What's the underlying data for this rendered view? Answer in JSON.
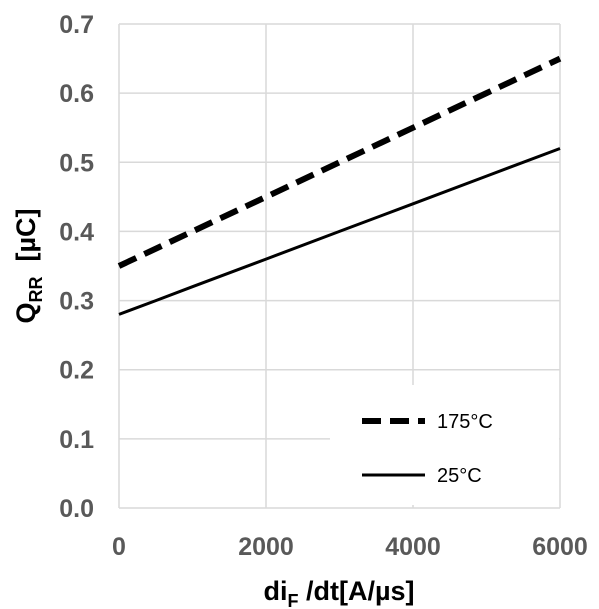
{
  "chart_data": {
    "type": "line",
    "x_axis": {
      "label_main": "di",
      "label_sub": "F",
      "label_rest": " /dt[A/µs]",
      "range": [
        0,
        6000
      ],
      "ticks": [
        0,
        2000,
        4000,
        6000
      ],
      "tick_labels": [
        "0",
        "2000",
        "4000",
        "6000"
      ]
    },
    "y_axis": {
      "label_main": "Q",
      "label_sub": "RR",
      "label_rest": "  [µC]",
      "range": [
        0.0,
        0.7
      ],
      "ticks": [
        0.0,
        0.1,
        0.2,
        0.3,
        0.4,
        0.5,
        0.6,
        0.7
      ],
      "tick_labels": [
        "0.0",
        "0.1",
        "0.2",
        "0.3",
        "0.4",
        "0.5",
        "0.6",
        "0.7"
      ]
    },
    "grid": true,
    "legend_position": "bottom-right",
    "series": [
      {
        "name": "175°C",
        "style": "dashed",
        "color": "#000000",
        "x": [
          0,
          1000,
          2000,
          3000,
          4000,
          5000,
          6000
        ],
        "y": [
          0.35,
          0.4,
          0.45,
          0.5,
          0.55,
          0.6,
          0.65
        ]
      },
      {
        "name": "25°C",
        "style": "solid",
        "color": "#000000",
        "x": [
          0,
          500,
          1000,
          2000,
          3000,
          4000,
          5000,
          6000
        ],
        "y": [
          0.28,
          0.3,
          0.32,
          0.36,
          0.4,
          0.44,
          0.48,
          0.52
        ]
      }
    ]
  }
}
